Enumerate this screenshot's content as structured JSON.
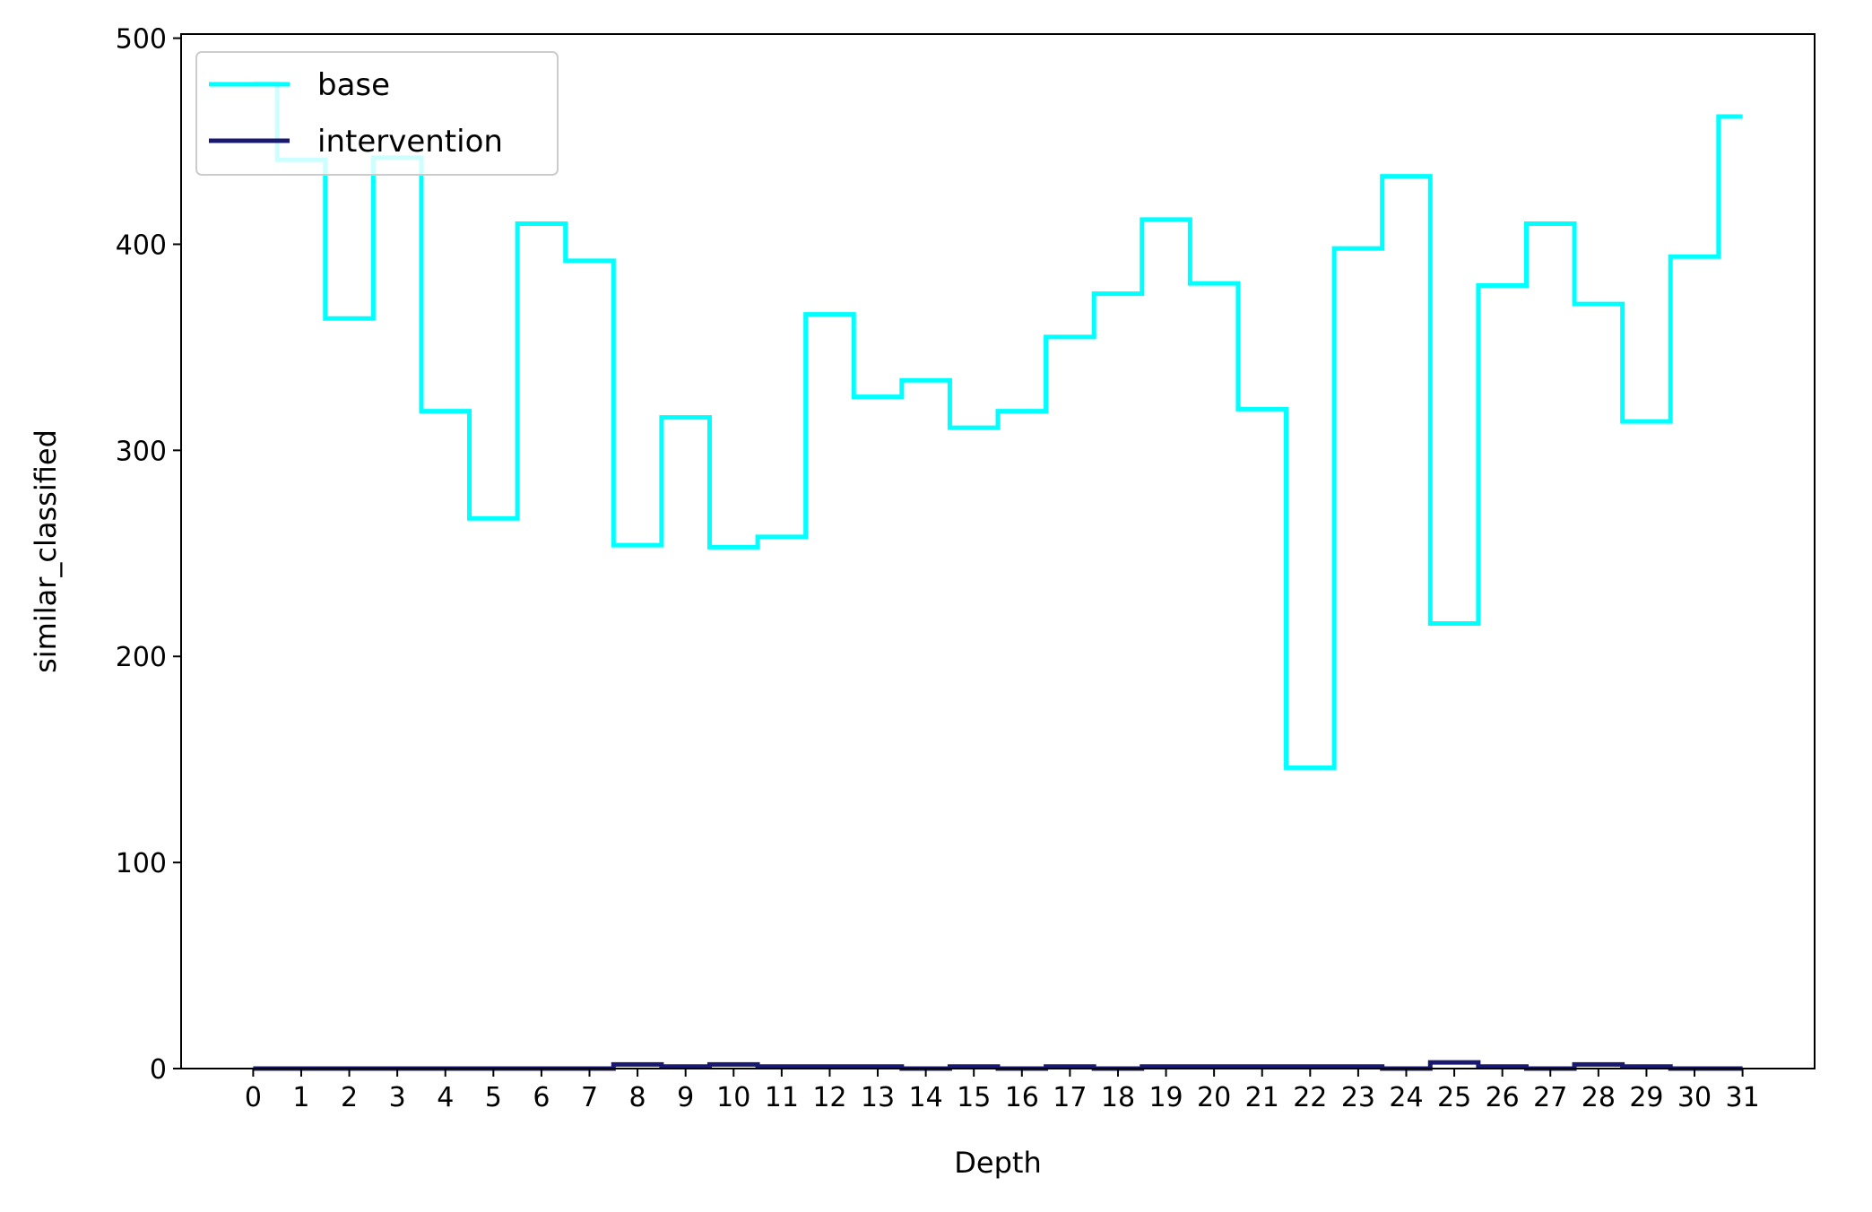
{
  "chart_data": {
    "type": "line",
    "drawstyle": "steps-mid",
    "title": "",
    "xlabel": "Depth",
    "ylabel": "similar_classified",
    "x": [
      0,
      1,
      2,
      3,
      4,
      5,
      6,
      7,
      8,
      9,
      10,
      11,
      12,
      13,
      14,
      15,
      16,
      17,
      18,
      19,
      20,
      21,
      22,
      23,
      24,
      25,
      26,
      27,
      28,
      29,
      30,
      31
    ],
    "xticks": [
      "0",
      "1",
      "2",
      "3",
      "4",
      "5",
      "6",
      "7",
      "8",
      "9",
      "10",
      "11",
      "12",
      "13",
      "14",
      "15",
      "16",
      "17",
      "18",
      "19",
      "20",
      "21",
      "22",
      "23",
      "24",
      "25",
      "26",
      "27",
      "28",
      "29",
      "30",
      "31"
    ],
    "yticks": [
      0,
      100,
      200,
      300,
      400,
      500
    ],
    "xlim": [
      -1.5,
      32.5
    ],
    "ylim": [
      0,
      502
    ],
    "grid": false,
    "legend_position": "top-left",
    "series": [
      {
        "name": "base",
        "color": "#00FFFF",
        "values": [
          478,
          441,
          364,
          442,
          319,
          267,
          410,
          392,
          254,
          316,
          253,
          258,
          366,
          326,
          334,
          311,
          319,
          355,
          376,
          412,
          381,
          320,
          146,
          398,
          433,
          216,
          380,
          410,
          371,
          314,
          394,
          462
        ]
      },
      {
        "name": "intervention",
        "color": "#191970",
        "values": [
          0,
          0,
          0,
          0,
          0,
          0,
          0,
          0,
          2,
          1,
          2,
          1,
          1,
          1,
          0,
          1,
          0,
          1,
          0,
          1,
          1,
          1,
          1,
          1,
          0,
          3,
          1,
          0,
          2,
          1,
          0,
          0
        ]
      }
    ]
  }
}
